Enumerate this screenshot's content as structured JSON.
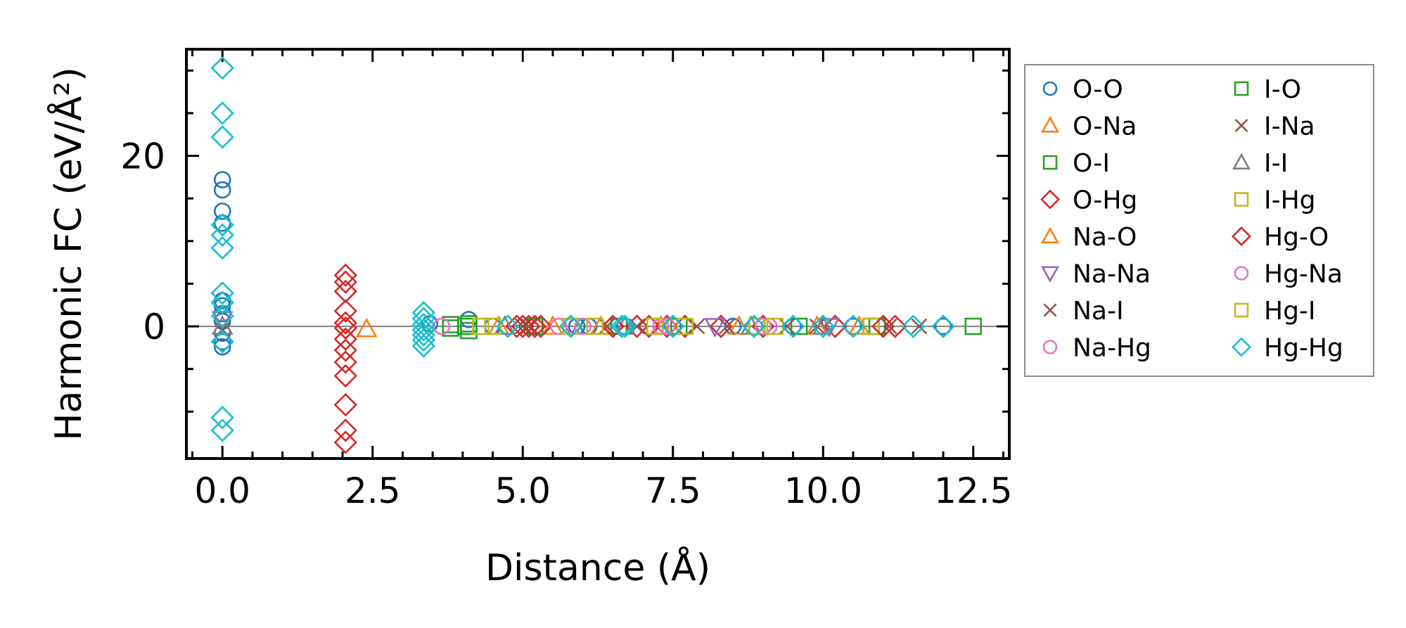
{
  "chart_data": {
    "type": "scatter",
    "title": "",
    "xlabel": "Distance (Å)",
    "ylabel": "Harmonic FC (eV/Å²)",
    "xlim": [
      -0.6,
      13.1
    ],
    "ylim": [
      -15.5,
      32.5
    ],
    "xticks": [
      0.0,
      2.5,
      5.0,
      7.5,
      10.0,
      12.5
    ],
    "xtick_labels": [
      "0.0",
      "2.5",
      "5.0",
      "7.5",
      "10.0",
      "12.5"
    ],
    "yticks": [
      0,
      20
    ],
    "ytick_labels": [
      "0",
      "20"
    ],
    "reference_line_y": 0,
    "legend_position": "outside-right",
    "series": [
      {
        "name": "O-O",
        "marker": "circle",
        "color": "#1f77b4",
        "points": [
          [
            0,
            17.2
          ],
          [
            0,
            16.0
          ],
          [
            0,
            13.5
          ],
          [
            0,
            12.1
          ],
          [
            0,
            3.0
          ],
          [
            0,
            2.4
          ],
          [
            0,
            1.5
          ],
          [
            0,
            0.6
          ],
          [
            0,
            -0.8
          ],
          [
            0,
            -1.8
          ],
          [
            0,
            -2.4
          ],
          [
            3.45,
            0.3
          ],
          [
            4.1,
            0.8
          ],
          [
            4.5,
            0
          ],
          [
            5.9,
            0
          ],
          [
            6.1,
            0
          ],
          [
            6.7,
            0
          ],
          [
            7.5,
            0
          ],
          [
            8.5,
            0
          ],
          [
            9.5,
            0
          ],
          [
            10.5,
            0
          ],
          [
            12.0,
            0
          ]
        ]
      },
      {
        "name": "O-Na",
        "marker": "triangle-up",
        "color": "#ff7f0e",
        "points": [
          [
            2.4,
            -0.3
          ],
          [
            5.5,
            0
          ],
          [
            7.3,
            0
          ],
          [
            9.9,
            0
          ]
        ]
      },
      {
        "name": "O-I",
        "marker": "square",
        "color": "#2ca02c",
        "points": [
          [
            3.8,
            0.2
          ],
          [
            3.8,
            -0.2
          ],
          [
            4.1,
            -0.5
          ],
          [
            4.1,
            0.3
          ],
          [
            6.6,
            0
          ],
          [
            8.9,
            0
          ],
          [
            10.9,
            0
          ]
        ]
      },
      {
        "name": "O-Hg",
        "marker": "diamond",
        "color": "#d62728",
        "points": [
          [
            2.05,
            6.0
          ],
          [
            2.05,
            5.2
          ],
          [
            2.05,
            4.1
          ],
          [
            2.05,
            1.8
          ],
          [
            2.05,
            0.4
          ],
          [
            2.05,
            -0.2
          ],
          [
            2.05,
            -1.5
          ],
          [
            2.05,
            -2.8
          ],
          [
            2.05,
            -4.2
          ],
          [
            2.05,
            -5.8
          ],
          [
            2.05,
            -9.2
          ],
          [
            2.05,
            -12.2
          ],
          [
            2.05,
            -13.6
          ],
          [
            4.9,
            0
          ],
          [
            5.1,
            0
          ],
          [
            5.3,
            0
          ],
          [
            6.9,
            0
          ],
          [
            7.1,
            0
          ],
          [
            7.7,
            0
          ],
          [
            8.3,
            0
          ],
          [
            10.2,
            0
          ],
          [
            11.2,
            0
          ]
        ]
      },
      {
        "name": "Na-O",
        "marker": "triangle-up",
        "color": "#ff7f0e",
        "points": [
          [
            4.6,
            0
          ],
          [
            6.3,
            0
          ],
          [
            8.6,
            0
          ],
          [
            10.6,
            0
          ]
        ]
      },
      {
        "name": "Na-Na",
        "marker": "triangle-down",
        "color": "#9467bd",
        "points": [
          [
            0,
            0.8
          ],
          [
            5.8,
            0
          ],
          [
            8.2,
            0
          ],
          [
            10.1,
            0
          ]
        ]
      },
      {
        "name": "Na-I",
        "marker": "x",
        "color": "#8c564b",
        "points": [
          [
            0,
            -0.4
          ],
          [
            5.0,
            0
          ],
          [
            6.9,
            0
          ],
          [
            8.4,
            0
          ],
          [
            9.9,
            0
          ],
          [
            11.6,
            0
          ]
        ]
      },
      {
        "name": "Na-Hg",
        "marker": "circle",
        "color": "#e377c2",
        "points": [
          [
            3.65,
            0
          ],
          [
            5.6,
            0
          ],
          [
            7.3,
            0
          ],
          [
            9.1,
            0
          ]
        ]
      },
      {
        "name": "I-O",
        "marker": "square",
        "color": "#2ca02c",
        "points": [
          [
            4.05,
            0
          ],
          [
            5.2,
            0
          ],
          [
            7.6,
            0
          ],
          [
            9.6,
            0
          ],
          [
            10.8,
            0
          ],
          [
            12.5,
            0
          ]
        ]
      },
      {
        "name": "I-Na",
        "marker": "x",
        "color": "#8c564b",
        "points": [
          [
            5.1,
            0
          ],
          [
            6.4,
            0
          ],
          [
            7.9,
            0
          ],
          [
            9.4,
            0
          ],
          [
            11.1,
            0
          ]
        ]
      },
      {
        "name": "I-I",
        "marker": "triangle-up",
        "color": "#7f7f7f",
        "points": [
          [
            0,
            0
          ],
          [
            4.7,
            0
          ],
          [
            6.7,
            0
          ],
          [
            8.8,
            0
          ],
          [
            10.0,
            0
          ]
        ]
      },
      {
        "name": "I-Hg",
        "marker": "square",
        "color": "#bcbd22",
        "points": [
          [
            4.3,
            0
          ],
          [
            5.8,
            0
          ],
          [
            7.2,
            0
          ],
          [
            8.9,
            0
          ],
          [
            10.8,
            0
          ]
        ]
      },
      {
        "name": "Hg-O",
        "marker": "diamond",
        "color": "#d62728",
        "points": [
          [
            5.0,
            0
          ],
          [
            5.2,
            0
          ],
          [
            6.5,
            0
          ],
          [
            7.4,
            0
          ],
          [
            9.0,
            0
          ],
          [
            11.0,
            0
          ],
          [
            12.0,
            0
          ]
        ]
      },
      {
        "name": "Hg-Na",
        "marker": "circle",
        "color": "#e377c2",
        "points": [
          [
            6.0,
            0
          ],
          [
            7.4,
            0
          ],
          [
            9.0,
            0
          ]
        ]
      },
      {
        "name": "Hg-I",
        "marker": "square",
        "color": "#bcbd22",
        "points": [
          [
            4.5,
            0
          ],
          [
            6.2,
            0
          ],
          [
            7.7,
            0
          ],
          [
            9.2,
            0
          ]
        ]
      },
      {
        "name": "Hg-Hg",
        "marker": "diamond",
        "color": "#17becf",
        "points": [
          [
            0,
            30.3
          ],
          [
            0,
            25.0
          ],
          [
            0,
            22.2
          ],
          [
            0,
            11.9
          ],
          [
            0,
            10.7
          ],
          [
            0,
            9.2
          ],
          [
            0,
            3.9
          ],
          [
            0,
            2.8
          ],
          [
            0,
            1.2
          ],
          [
            0,
            -1.8
          ],
          [
            0,
            -10.7
          ],
          [
            0,
            -12.2
          ],
          [
            3.35,
            1.6
          ],
          [
            3.35,
            0.9
          ],
          [
            3.35,
            0.2
          ],
          [
            3.35,
            -0.4
          ],
          [
            3.35,
            -1.0
          ],
          [
            3.35,
            -1.6
          ],
          [
            3.35,
            -2.3
          ],
          [
            4.75,
            0
          ],
          [
            5.8,
            0
          ],
          [
            6.65,
            0
          ],
          [
            6.7,
            0
          ],
          [
            7.5,
            0
          ],
          [
            8.85,
            0
          ],
          [
            9.5,
            0
          ],
          [
            10.0,
            0
          ],
          [
            10.5,
            0
          ],
          [
            11.5,
            0
          ],
          [
            12.0,
            0
          ]
        ]
      }
    ]
  }
}
